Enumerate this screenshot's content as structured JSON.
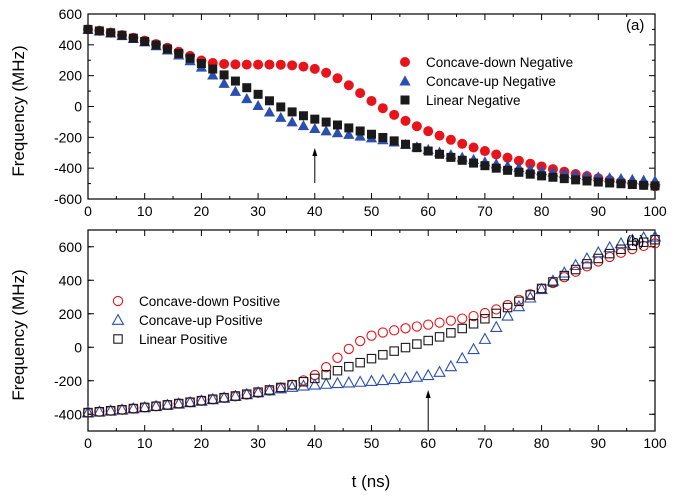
{
  "chart_data": [
    {
      "type": "scatter",
      "panel_label": "(a)",
      "ylabel": "Frequency (MHz)",
      "xlabel": "",
      "xlim": [
        0,
        100
      ],
      "ylim": [
        -600,
        600
      ],
      "xticks": [
        0,
        10,
        20,
        30,
        40,
        50,
        60,
        70,
        80,
        90,
        100
      ],
      "yticks": [
        -600,
        -400,
        -200,
        0,
        200,
        400,
        600
      ],
      "grid": false,
      "legend_position": "top-right",
      "arrow_at_x": 40,
      "x": [
        0,
        2,
        4,
        6,
        8,
        10,
        12,
        14,
        16,
        18,
        20,
        22,
        24,
        26,
        28,
        30,
        32,
        34,
        36,
        38,
        40,
        42,
        44,
        46,
        48,
        50,
        52,
        54,
        56,
        58,
        60,
        62,
        64,
        66,
        68,
        70,
        72,
        74,
        76,
        78,
        80,
        82,
        84,
        86,
        88,
        90,
        92,
        94,
        96,
        98,
        100
      ],
      "series": [
        {
          "name": "Concave-down Negative",
          "marker": "circle-filled",
          "color": "#e8141c",
          "values": [
            500,
            491,
            479,
            463,
            446,
            427,
            405,
            381,
            355,
            328,
            298,
            282,
            276,
            273,
            272,
            272,
            272,
            271,
            267,
            259,
            244,
            219,
            183,
            138,
            87,
            36,
            -11,
            -54,
            -93,
            -128,
            -160,
            -189,
            -216,
            -242,
            -266,
            -289,
            -311,
            -332,
            -352,
            -371,
            -389,
            -406,
            -423,
            -438,
            -452,
            -465,
            -477,
            -488,
            -499,
            -508,
            -517
          ]
        },
        {
          "name": "Concave-up Negative",
          "marker": "triangle-filled",
          "color": "#2a4fb0",
          "values": [
            500,
            490,
            477,
            460,
            441,
            419,
            394,
            366,
            334,
            297,
            255,
            204,
            150,
            98,
            51,
            6,
            -36,
            -71,
            -100,
            -124,
            -143,
            -158,
            -170,
            -181,
            -192,
            -204,
            -216,
            -230,
            -246,
            -262,
            -279,
            -296,
            -313,
            -329,
            -344,
            -359,
            -372,
            -385,
            -396,
            -407,
            -417,
            -426,
            -434,
            -442,
            -449,
            -456,
            -462,
            -468,
            -473,
            -478,
            -482
          ]
        },
        {
          "name": "Linear Negative",
          "marker": "square-filled",
          "color": "#1a1a1a",
          "values": [
            500,
            490,
            478,
            462,
            443,
            422,
            399,
            373,
            344,
            313,
            279,
            243,
            205,
            165,
            122,
            79,
            37,
            -3,
            -35,
            -60,
            -82,
            -101,
            -120,
            -139,
            -159,
            -180,
            -201,
            -223,
            -245,
            -267,
            -289,
            -310,
            -330,
            -349,
            -367,
            -384,
            -400,
            -414,
            -427,
            -439,
            -450,
            -459,
            -468,
            -476,
            -483,
            -490,
            -496,
            -501,
            -506,
            -511,
            -515
          ]
        }
      ]
    },
    {
      "type": "scatter",
      "panel_label": "(b)",
      "ylabel": "Frequency (MHz)",
      "xlabel": "t (ns)",
      "xlim": [
        0,
        100
      ],
      "ylim": [
        -500,
        700
      ],
      "xticks": [
        0,
        10,
        20,
        30,
        40,
        50,
        60,
        70,
        80,
        90,
        100
      ],
      "yticks": [
        -400,
        -200,
        0,
        200,
        400,
        600
      ],
      "grid": false,
      "legend_position": "middle-left",
      "arrow_at_x": 60,
      "x": [
        0,
        2,
        4,
        6,
        8,
        10,
        12,
        14,
        16,
        18,
        20,
        22,
        24,
        26,
        28,
        30,
        32,
        34,
        36,
        38,
        40,
        42,
        44,
        46,
        48,
        50,
        52,
        54,
        56,
        58,
        60,
        62,
        64,
        66,
        68,
        70,
        72,
        74,
        76,
        78,
        80,
        82,
        84,
        86,
        88,
        90,
        92,
        94,
        96,
        98,
        100
      ],
      "series": [
        {
          "name": "Concave-down Positive",
          "marker": "circle-open",
          "color": "#e8141c",
          "values": [
            -390,
            -385,
            -379,
            -373,
            -366,
            -359,
            -352,
            -344,
            -336,
            -328,
            -319,
            -311,
            -302,
            -293,
            -283,
            -272,
            -259,
            -243,
            -224,
            -198,
            -166,
            -119,
            -63,
            -10,
            37,
            69,
            88,
            101,
            113,
            124,
            135,
            147,
            159,
            171,
            186,
            204,
            226,
            252,
            283,
            316,
            350,
            384,
            418,
            451,
            483,
            512,
            539,
            564,
            586,
            605,
            620
          ]
        },
        {
          "name": "Concave-up Positive",
          "marker": "triangle-open",
          "color": "#2a4fb0",
          "values": [
            -390,
            -385,
            -379,
            -373,
            -366,
            -359,
            -352,
            -345,
            -337,
            -329,
            -320,
            -311,
            -302,
            -292,
            -281,
            -270,
            -258,
            -246,
            -237,
            -230,
            -224,
            -219,
            -215,
            -211,
            -207,
            -202,
            -197,
            -191,
            -184,
            -177,
            -167,
            -148,
            -114,
            -66,
            -12,
            49,
            120,
            188,
            244,
            296,
            346,
            397,
            445,
            490,
            530,
            566,
            596,
            620,
            640,
            655,
            660
          ]
        },
        {
          "name": "Linear Positive",
          "marker": "square-open",
          "color": "#1a1a1a",
          "values": [
            -390,
            -385,
            -379,
            -373,
            -366,
            -359,
            -352,
            -344,
            -336,
            -328,
            -319,
            -310,
            -301,
            -291,
            -280,
            -268,
            -255,
            -240,
            -224,
            -206,
            -186,
            -164,
            -140,
            -116,
            -92,
            -68,
            -45,
            -23,
            -2,
            19,
            40,
            62,
            86,
            112,
            140,
            170,
            202,
            237,
            274,
            312,
            351,
            390,
            428,
            464,
            498,
            530,
            559,
            585,
            608,
            627,
            642
          ]
        }
      ]
    }
  ]
}
